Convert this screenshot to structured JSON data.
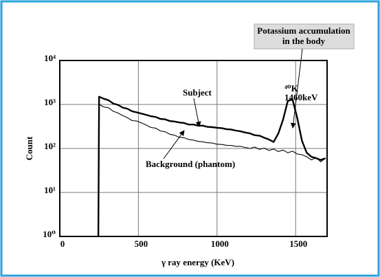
{
  "chart_data": {
    "type": "line",
    "xlabel": "γ ray energy (KeV)",
    "ylabel": "Count",
    "x": [
      245,
      250,
      280,
      310,
      340,
      370,
      400,
      430,
      460,
      490,
      520,
      550,
      580,
      610,
      640,
      670,
      700,
      730,
      760,
      790,
      820,
      850,
      880,
      910,
      940,
      970,
      1000,
      1030,
      1060,
      1090,
      1120,
      1150,
      1180,
      1210,
      1240,
      1270,
      1300,
      1330,
      1360,
      1390,
      1420,
      1450,
      1480,
      1510,
      1540,
      1570,
      1600,
      1630,
      1660,
      1690
    ],
    "series": [
      {
        "name": "Subject",
        "color": "#000000",
        "width": 2.4,
        "values": [
          1,
          1500,
          1350,
          1250,
          1050,
          980,
          850,
          800,
          700,
          660,
          620,
          580,
          540,
          520,
          470,
          460,
          420,
          410,
          390,
          380,
          350,
          350,
          330,
          330,
          310,
          305,
          295,
          290,
          275,
          270,
          255,
          245,
          230,
          220,
          200,
          195,
          175,
          160,
          140,
          220,
          450,
          1200,
          1300,
          500,
          150,
          80,
          65,
          60,
          55,
          60
        ]
      },
      {
        "name": "Background (phantom)",
        "color": "#000000",
        "width": 1.1,
        "values": [
          1,
          1000,
          880,
          840,
          700,
          640,
          560,
          500,
          430,
          420,
          380,
          340,
          300,
          290,
          250,
          240,
          210,
          200,
          180,
          175,
          160,
          155,
          145,
          142,
          135,
          133,
          125,
          123,
          118,
          117,
          112,
          112,
          105,
          100,
          108,
          95,
          102,
          90,
          97,
          85,
          92,
          80,
          87,
          75,
          72,
          65,
          55,
          62,
          50,
          60
        ]
      }
    ],
    "annotations": [
      "Potassium accumulation",
      "in the body",
      "⁴⁰K",
      "1460keV"
    ],
    "xlim": [
      0,
      1700
    ],
    "xticks": [
      0,
      500,
      1000,
      1500
    ],
    "ylim": [
      1,
      10000
    ],
    "log_y": true,
    "yticks": [
      {
        "value": 1,
        "label": "10⁰"
      },
      {
        "value": 10,
        "label": "10¹"
      },
      {
        "value": 100,
        "label": "10²"
      },
      {
        "value": 1000,
        "label": "10³"
      },
      {
        "value": 10000,
        "label": "10⁴"
      }
    ],
    "grid": true,
    "border_color": "#2aa3dc"
  }
}
